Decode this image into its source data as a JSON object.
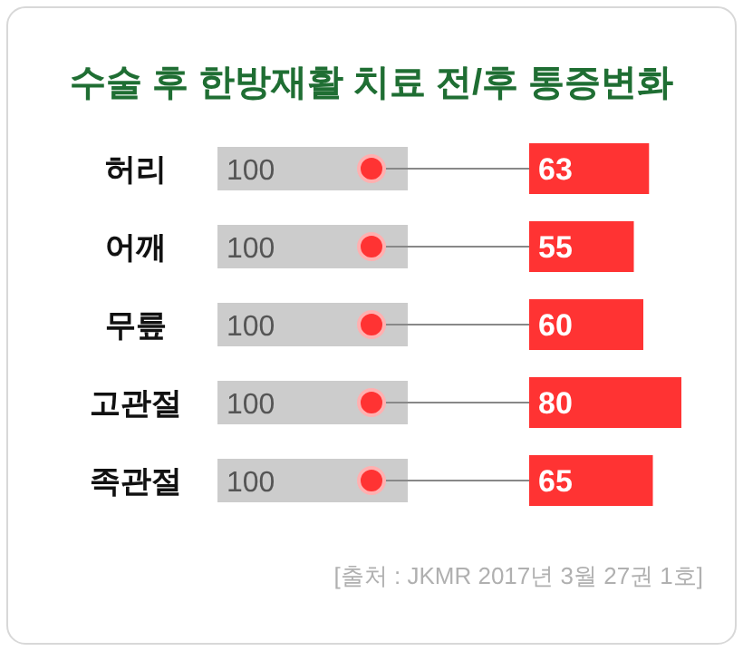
{
  "chart_data": [
    {
      "type": "bar",
      "orientation": "horizontal",
      "title": "수술 후 한방재활 치료 전/후 통증변화",
      "categories": [
        "허리",
        "어깨",
        "무릎",
        "고관절",
        "족관절"
      ],
      "series": [
        {
          "color": "#cccccc",
          "values": [
            100,
            100,
            100,
            100,
            100
          ]
        }
      ],
      "data_labels": true
    },
    {
      "type": "bar",
      "orientation": "horizontal",
      "categories": [
        null,
        null,
        null,
        null,
        null
      ],
      "series": [
        {
          "color": "#ff3333",
          "values": [
            63,
            55,
            60,
            80,
            65
          ]
        }
      ],
      "data_labels": true,
      "annotations": [
        "[출처 : JKMR 2017년 3월 27권 1호]"
      ]
    }
  ]
}
